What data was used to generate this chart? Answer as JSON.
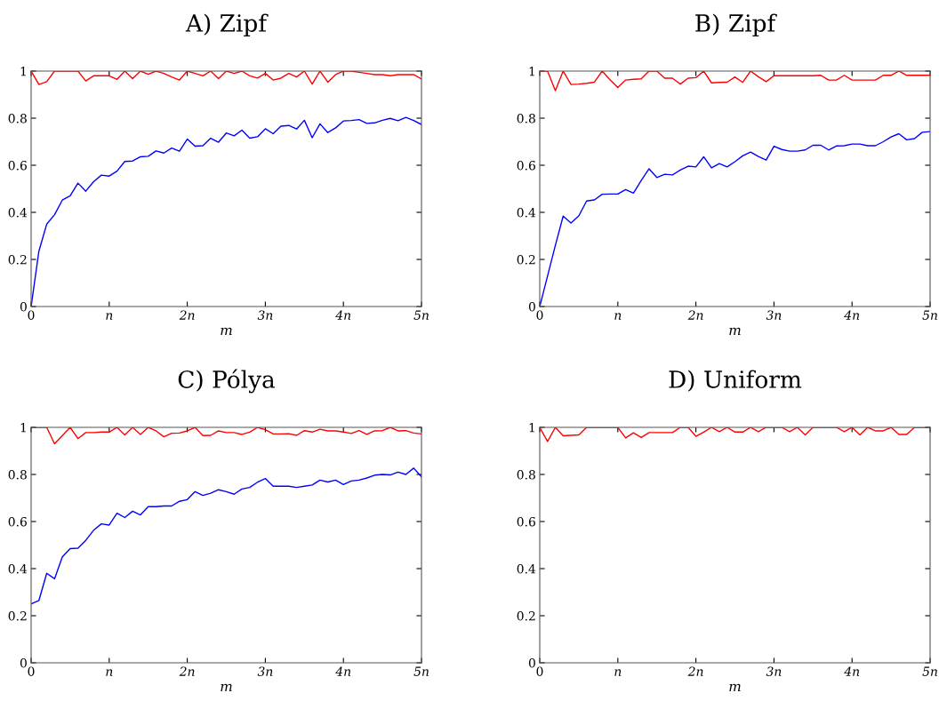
{
  "chart_data": [
    {
      "type": "line",
      "title": "A) Zipf",
      "xlabel": "m",
      "x": [
        0,
        0.1,
        0.2,
        0.3,
        0.4,
        0.5,
        0.6,
        0.7,
        0.8,
        0.9,
        1,
        1.1,
        1.2,
        1.3,
        1.4,
        1.5,
        1.6,
        1.7,
        1.8,
        1.9,
        2,
        2.1,
        2.2,
        2.3,
        2.4,
        2.5,
        2.6,
        2.7,
        2.8,
        2.9,
        3,
        3.1,
        3.2,
        3.3,
        3.4,
        3.5,
        3.6,
        3.7,
        3.8,
        3.9,
        4,
        4.1,
        4.2,
        4.3,
        4.4,
        4.5,
        4.6,
        4.7,
        4.8,
        4.9,
        5
      ],
      "series": [
        {
          "color": "#ff0000",
          "values": [
            1,
            0.943,
            0.955,
            1,
            1,
            1,
            1,
            0.958,
            0.98,
            0.98,
            0.98,
            0.965,
            1,
            0.968,
            1,
            0.986,
            1,
            0.99,
            0.975,
            0.962,
            1,
            0.99,
            0.98,
            1,
            0.968,
            1,
            0.99,
            1,
            0.98,
            0.97,
            0.99,
            0.962,
            0.97,
            0.99,
            0.975,
            1,
            0.945,
            1,
            0.953,
            0.985,
            1,
            1,
            0.995,
            0.99,
            0.985,
            0.985,
            0.98,
            0.985,
            0.985,
            0.985,
            0.966
          ]
        },
        {
          "color": "#0000ff",
          "values": [
            0,
            0.236,
            0.35,
            0.39,
            0.452,
            0.47,
            0.524,
            0.49,
            0.53,
            0.558,
            0.554,
            0.575,
            0.616,
            0.618,
            0.636,
            0.638,
            0.661,
            0.652,
            0.673,
            0.66,
            0.711,
            0.681,
            0.683,
            0.715,
            0.698,
            0.737,
            0.725,
            0.749,
            0.715,
            0.721,
            0.755,
            0.734,
            0.766,
            0.769,
            0.754,
            0.791,
            0.717,
            0.776,
            0.739,
            0.759,
            0.788,
            0.79,
            0.794,
            0.778,
            0.78,
            0.791,
            0.799,
            0.789,
            0.803,
            0.79,
            0.773
          ]
        }
      ],
      "xlim": [
        0,
        5
      ],
      "xticks": [
        0,
        {
          "value": 1,
          "label": "n"
        },
        {
          "value": 2,
          "label": "2n"
        },
        {
          "value": 3,
          "label": "3n"
        },
        {
          "value": 4,
          "label": "4n"
        },
        {
          "value": 5,
          "label": "5n"
        }
      ],
      "ylim": [
        0,
        1
      ],
      "yticks": [
        0,
        0.2,
        0.4,
        0.6,
        0.8,
        1
      ]
    },
    {
      "type": "line",
      "title": "B) Zipf",
      "xlabel": "m",
      "x": [
        0,
        0.1,
        0.2,
        0.3,
        0.4,
        0.5,
        0.6,
        0.7,
        0.8,
        0.9,
        1,
        1.1,
        1.2,
        1.3,
        1.4,
        1.5,
        1.6,
        1.7,
        1.8,
        1.9,
        2,
        2.1,
        2.2,
        2.3,
        2.4,
        2.5,
        2.6,
        2.7,
        2.8,
        2.9,
        3,
        3.1,
        3.2,
        3.3,
        3.4,
        3.5,
        3.6,
        3.7,
        3.8,
        3.9,
        4,
        4.1,
        4.2,
        4.3,
        4.4,
        4.5,
        4.6,
        4.7,
        4.8,
        4.9,
        5
      ],
      "series": [
        {
          "color": "#ff0000",
          "values": [
            1,
            1,
            0.917,
            1,
            0.943,
            0.945,
            0.948,
            0.953,
            1,
            0.963,
            0.93,
            0.962,
            0.965,
            0.967,
            1,
            1,
            0.97,
            0.97,
            0.945,
            0.97,
            0.972,
            1,
            0.95,
            0.952,
            0.953,
            0.975,
            0.952,
            1,
            0.976,
            0.955,
            0.98,
            0.98,
            0.98,
            0.98,
            0.98,
            0.98,
            0.982,
            0.962,
            0.962,
            0.982,
            0.962,
            0.962,
            0.962,
            0.962,
            0.982,
            0.982,
            1,
            0.982,
            0.982,
            0.982,
            0.982
          ]
        },
        {
          "color": "#0000ff",
          "values": [
            0,
            0.13,
            0.26,
            0.384,
            0.355,
            0.385,
            0.448,
            0.453,
            0.477,
            0.478,
            0.478,
            0.497,
            0.482,
            0.535,
            0.585,
            0.548,
            0.562,
            0.559,
            0.58,
            0.596,
            0.593,
            0.636,
            0.589,
            0.607,
            0.593,
            0.615,
            0.64,
            0.656,
            0.637,
            0.622,
            0.681,
            0.667,
            0.66,
            0.66,
            0.665,
            0.685,
            0.685,
            0.665,
            0.682,
            0.683,
            0.69,
            0.69,
            0.683,
            0.683,
            0.7,
            0.72,
            0.734,
            0.708,
            0.713,
            0.74,
            0.743
          ]
        }
      ],
      "xlim": [
        0,
        5
      ],
      "xticks": [
        0,
        {
          "value": 1,
          "label": "n"
        },
        {
          "value": 2,
          "label": "2n"
        },
        {
          "value": 3,
          "label": "3n"
        },
        {
          "value": 4,
          "label": "4n"
        },
        {
          "value": 5,
          "label": "5n"
        }
      ],
      "ylim": [
        0,
        1
      ],
      "yticks": [
        0,
        0.2,
        0.4,
        0.6,
        0.8,
        1
      ]
    },
    {
      "type": "line",
      "title": "C) Pólya",
      "xlabel": "m",
      "x": [
        0,
        0.1,
        0.2,
        0.3,
        0.4,
        0.5,
        0.6,
        0.7,
        0.8,
        0.9,
        1,
        1.1,
        1.2,
        1.3,
        1.4,
        1.5,
        1.6,
        1.7,
        1.8,
        1.9,
        2,
        2.1,
        2.2,
        2.3,
        2.4,
        2.5,
        2.6,
        2.7,
        2.8,
        2.9,
        3,
        3.1,
        3.2,
        3.3,
        3.4,
        3.5,
        3.6,
        3.7,
        3.8,
        3.9,
        4,
        4.1,
        4.2,
        4.3,
        4.4,
        4.5,
        4.6,
        4.7,
        4.8,
        4.9,
        5
      ],
      "series": [
        {
          "color": "#ff0000",
          "values": [
            1,
            1,
            1,
            0.93,
            0.965,
            1,
            0.952,
            0.978,
            0.978,
            0.98,
            0.98,
            1,
            0.968,
            1,
            0.97,
            1,
            0.985,
            0.96,
            0.975,
            0.976,
            0.985,
            1,
            0.965,
            0.966,
            0.985,
            0.978,
            0.978,
            0.97,
            0.98,
            1,
            0.99,
            0.972,
            0.972,
            0.973,
            0.966,
            0.986,
            0.98,
            0.992,
            0.985,
            0.985,
            0.98,
            0.974,
            0.986,
            0.97,
            0.985,
            0.986,
            1,
            0.985,
            0.986,
            0.976,
            0.972
          ]
        },
        {
          "color": "#0000ff",
          "values": [
            0.25,
            0.265,
            0.38,
            0.357,
            0.45,
            0.485,
            0.487,
            0.52,
            0.563,
            0.59,
            0.585,
            0.635,
            0.617,
            0.644,
            0.628,
            0.663,
            0.663,
            0.666,
            0.666,
            0.686,
            0.693,
            0.727,
            0.711,
            0.72,
            0.735,
            0.727,
            0.716,
            0.738,
            0.745,
            0.767,
            0.783,
            0.75,
            0.75,
            0.75,
            0.745,
            0.75,
            0.755,
            0.776,
            0.768,
            0.776,
            0.757,
            0.772,
            0.776,
            0.785,
            0.797,
            0.8,
            0.798,
            0.81,
            0.8,
            0.827,
            0.79
          ]
        }
      ],
      "xlim": [
        0,
        5
      ],
      "xticks": [
        0,
        {
          "value": 1,
          "label": "n"
        },
        {
          "value": 2,
          "label": "2n"
        },
        {
          "value": 3,
          "label": "3n"
        },
        {
          "value": 4,
          "label": "4n"
        },
        {
          "value": 5,
          "label": "5n"
        }
      ],
      "ylim": [
        0,
        1
      ],
      "yticks": [
        0,
        0.2,
        0.4,
        0.6,
        0.8,
        1
      ]
    },
    {
      "type": "line",
      "title": "D) Uniform",
      "xlabel": "m",
      "x": [
        0,
        0.1,
        0.2,
        0.3,
        0.4,
        0.5,
        0.6,
        0.7,
        0.8,
        0.9,
        1,
        1.1,
        1.2,
        1.3,
        1.4,
        1.5,
        1.6,
        1.7,
        1.8,
        1.9,
        2,
        2.1,
        2.2,
        2.3,
        2.4,
        2.5,
        2.6,
        2.7,
        2.8,
        2.9,
        3,
        3.1,
        3.2,
        3.3,
        3.4,
        3.5,
        3.6,
        3.7,
        3.8,
        3.9,
        4,
        4.1,
        4.2,
        4.3,
        4.4,
        4.5,
        4.6,
        4.7,
        4.8,
        4.9,
        5
      ],
      "series": [
        {
          "color": "#ff0000",
          "values": [
            1,
            0.94,
            1,
            0.964,
            0.966,
            0.968,
            1,
            1,
            1,
            1,
            1,
            0.955,
            0.977,
            0.957,
            0.978,
            0.978,
            0.978,
            0.978,
            1,
            1,
            0.962,
            0.98,
            1,
            0.982,
            1,
            0.98,
            0.98,
            1,
            0.982,
            1,
            1,
            1,
            0.982,
            1,
            0.968,
            1,
            1,
            1,
            1,
            0.982,
            1,
            0.968,
            1,
            0.985,
            0.985,
            1,
            0.97,
            0.97,
            1,
            1,
            1
          ]
        }
      ],
      "xlim": [
        0,
        5
      ],
      "xticks": [
        0,
        {
          "value": 1,
          "label": "n"
        },
        {
          "value": 2,
          "label": "2n"
        },
        {
          "value": 3,
          "label": "3n"
        },
        {
          "value": 4,
          "label": "4n"
        },
        {
          "value": 5,
          "label": "5n"
        }
      ],
      "ylim": [
        0,
        1
      ],
      "yticks": [
        0,
        0.2,
        0.4,
        0.6,
        0.8,
        1
      ]
    }
  ]
}
